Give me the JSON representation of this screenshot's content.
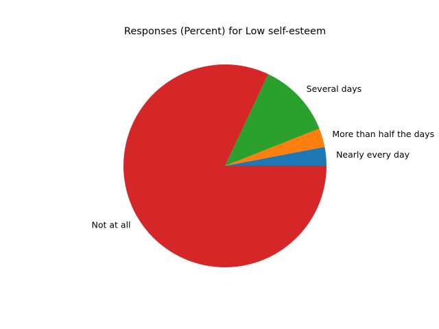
{
  "chart_data": {
    "type": "pie",
    "title": "Responses (Percent) for Low self-esteem",
    "categories": [
      "Nearly every day",
      "More than half the days",
      "Several days",
      "Not at all"
    ],
    "values": [
      3.0,
      3.0,
      12.0,
      82.0
    ],
    "colors": [
      "#1f77b4",
      "#ff7f0e",
      "#2ca02c",
      "#d62728"
    ],
    "start_angle": 0,
    "direction": "counterclockwise",
    "legend": "none"
  }
}
